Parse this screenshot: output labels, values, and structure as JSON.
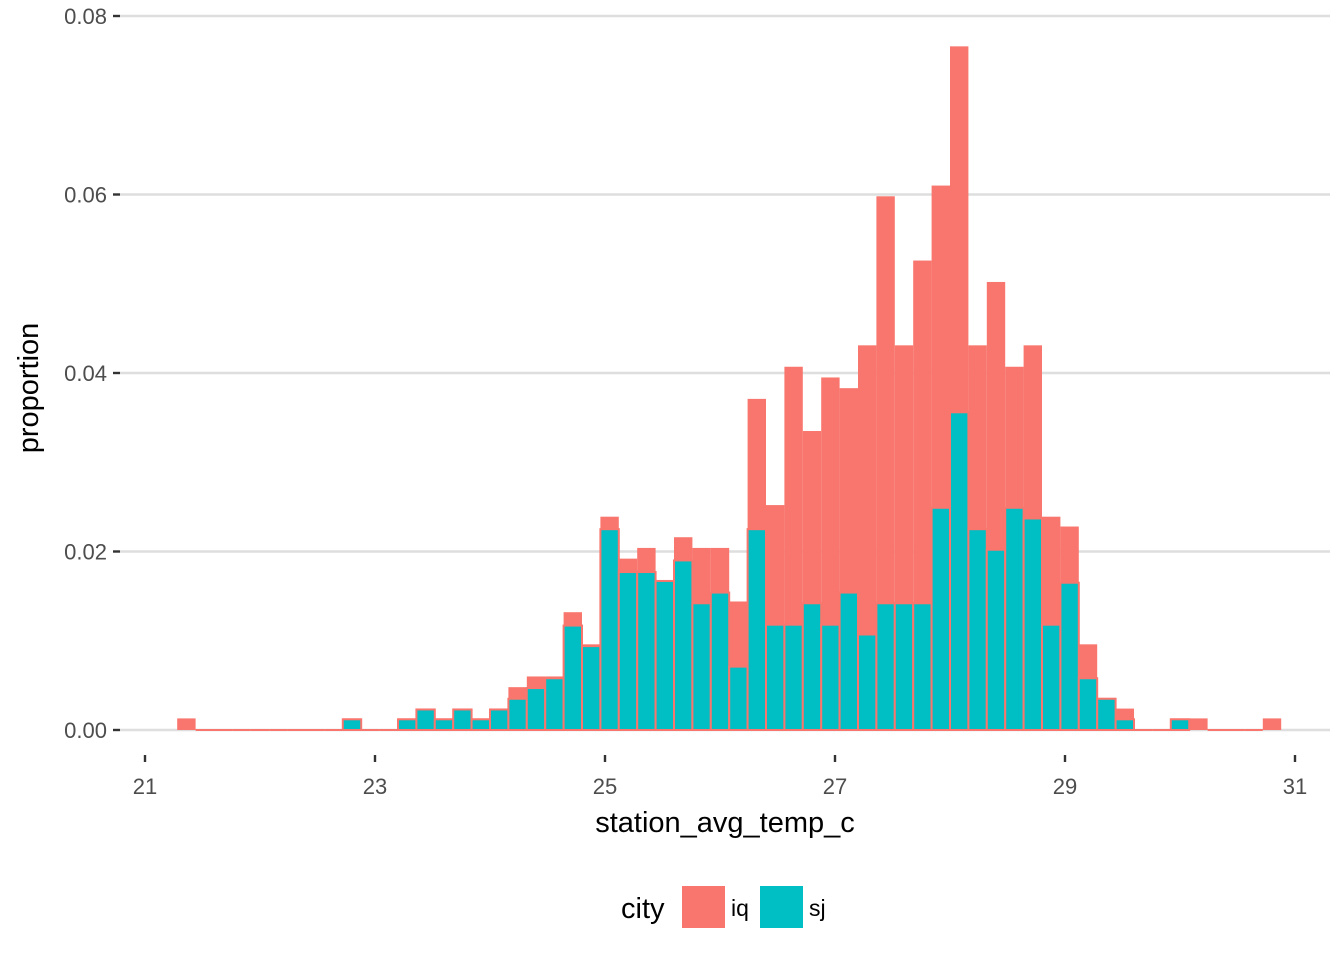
{
  "chart_data": {
    "type": "bar",
    "title": "",
    "xlabel": "station_avg_temp_c",
    "ylabel": "proportion",
    "xlim": [
      21,
      31
    ],
    "ylim": [
      0,
      0.08
    ],
    "x_ticks": [
      "21",
      "23",
      "25",
      "27",
      "29",
      "31"
    ],
    "y_ticks": [
      "0.00",
      "0.02",
      "0.04",
      "0.06",
      "0.08"
    ],
    "grid": true,
    "legend": {
      "title": "city",
      "position": "bottom"
    },
    "bin_width": 0.16,
    "series": [
      {
        "name": "iq",
        "color": "#F8766D",
        "x": [
          21.36,
          21.52,
          21.68,
          21.84,
          22.0,
          22.16,
          22.32,
          22.48,
          22.64,
          22.8,
          22.96,
          23.12,
          23.28,
          23.44,
          23.6,
          23.76,
          23.92,
          24.08,
          24.24,
          24.4,
          24.56,
          24.72,
          24.88,
          25.04,
          25.2,
          25.36,
          25.52,
          25.68,
          25.84,
          26.0,
          26.16,
          26.32,
          26.48,
          26.64,
          26.8,
          26.96,
          27.12,
          27.28,
          27.44,
          27.6,
          27.76,
          27.92,
          28.08,
          28.24,
          28.4,
          28.56,
          28.72,
          28.88,
          29.04,
          29.2,
          29.36,
          29.52,
          29.68,
          29.84,
          30.0,
          30.16,
          30.32,
          30.48,
          30.64,
          30.8
        ],
        "values": [
          0.0013,
          0,
          0,
          0,
          0,
          0,
          0,
          0,
          0,
          0.0013,
          0,
          0,
          0.0013,
          0.0024,
          0.0013,
          0.0024,
          0.0013,
          0.0024,
          0.0048,
          0.006,
          0.006,
          0.0132,
          0.0096,
          0.0239,
          0.0192,
          0.0204,
          0.0168,
          0.0216,
          0.0204,
          0.0204,
          0.0144,
          0.0371,
          0.0252,
          0.0407,
          0.0335,
          0.0395,
          0.0383,
          0.0431,
          0.0598,
          0.0431,
          0.0526,
          0.061,
          0.0766,
          0.0431,
          0.0502,
          0.0407,
          0.0431,
          0.0239,
          0.0228,
          0.0096,
          0.0036,
          0.0024,
          0,
          0,
          0.0013,
          0.0013,
          0,
          0,
          0,
          0.0013
        ]
      },
      {
        "name": "sj",
        "color": "#00BFC4",
        "x": [
          22.8,
          23.28,
          23.44,
          23.6,
          23.76,
          23.92,
          24.08,
          24.24,
          24.4,
          24.56,
          24.72,
          24.88,
          25.04,
          25.2,
          25.36,
          25.52,
          25.68,
          25.84,
          26.0,
          26.16,
          26.32,
          26.48,
          26.64,
          26.8,
          26.96,
          27.12,
          27.28,
          27.44,
          27.6,
          27.76,
          27.92,
          28.08,
          28.24,
          28.4,
          28.56,
          28.72,
          28.88,
          29.04,
          29.2,
          29.36,
          29.52,
          30.0
        ],
        "values": [
          0.0012,
          0.0012,
          0.0023,
          0.0012,
          0.0023,
          0.0012,
          0.0023,
          0.0035,
          0.0047,
          0.0058,
          0.0117,
          0.0094,
          0.0225,
          0.0177,
          0.0177,
          0.0167,
          0.019,
          0.0142,
          0.0154,
          0.0071,
          0.0225,
          0.0118,
          0.0118,
          0.0142,
          0.0118,
          0.0154,
          0.0107,
          0.0142,
          0.0142,
          0.0142,
          0.0249,
          0.0356,
          0.0225,
          0.0202,
          0.0249,
          0.0237,
          0.0118,
          0.0165,
          0.0058,
          0.0035,
          0.0012,
          0.0012
        ]
      }
    ]
  }
}
